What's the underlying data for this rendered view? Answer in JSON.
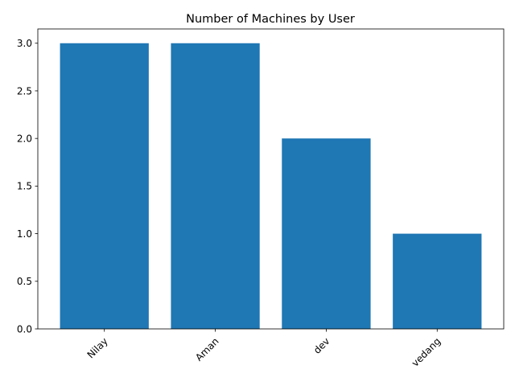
{
  "chart_data": {
    "type": "bar",
    "title": "Number of Machines by User",
    "xlabel": "",
    "ylabel": "",
    "categories": [
      "Nilay",
      "Aman",
      "dev",
      "vedang"
    ],
    "values": [
      3,
      3,
      2,
      1
    ],
    "ylim": [
      0,
      3.15
    ],
    "yticks": [
      "0.0",
      "0.5",
      "1.0",
      "1.5",
      "2.0",
      "2.5",
      "3.0"
    ],
    "x_tick_rotation_deg": 45,
    "grid": false,
    "legend": "none",
    "bar_color": "#1f77b4"
  }
}
